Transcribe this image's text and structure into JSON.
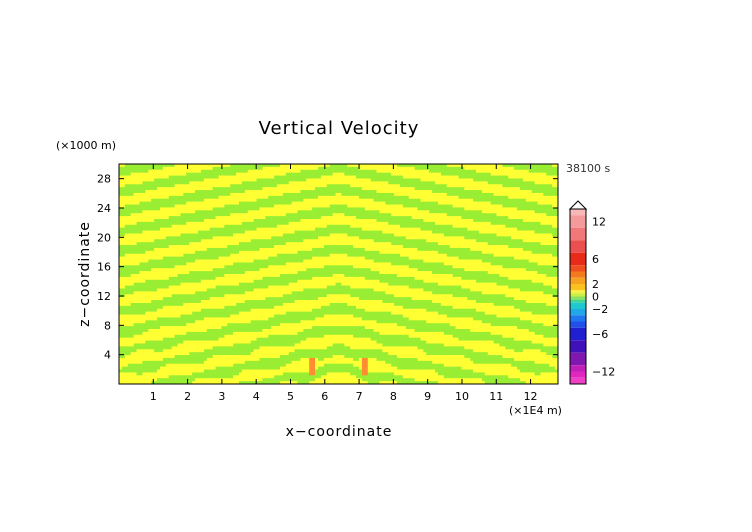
{
  "chart_data": {
    "type": "heatmap",
    "title": "Vertical Velocity",
    "xlabel": "x−coordinate",
    "ylabel": "z−coordinate",
    "x_unit": "(×1E4 m)",
    "y_unit": "(×1000 m)",
    "time_label": "38100 s",
    "xlim": [
      0,
      12.8
    ],
    "ylim": [
      0,
      30
    ],
    "x_ticks": [
      "1",
      "2",
      "3",
      "4",
      "5",
      "6",
      "7",
      "8",
      "9",
      "10",
      "11",
      "12"
    ],
    "y_ticks": [
      "4",
      "8",
      "12",
      "16",
      "20",
      "24",
      "28"
    ],
    "colorbar": {
      "range": [
        -14,
        14
      ],
      "tick_labels": [
        "12",
        "6",
        "2",
        "0",
        "−2",
        "−6",
        "−12"
      ],
      "tick_values": [
        12,
        6,
        2,
        0,
        -2,
        -6,
        -12
      ],
      "levels": [
        {
          "from": 13,
          "to": 14,
          "color": "#f8b8b8"
        },
        {
          "from": 11,
          "to": 13,
          "color": "#f49a9a"
        },
        {
          "from": 9,
          "to": 11,
          "color": "#f07878"
        },
        {
          "from": 7,
          "to": 9,
          "color": "#ea5050"
        },
        {
          "from": 5,
          "to": 7,
          "color": "#e82a1a"
        },
        {
          "from": 4,
          "to": 5,
          "color": "#f05020"
        },
        {
          "from": 3,
          "to": 4,
          "color": "#f47a20"
        },
        {
          "from": 2,
          "to": 3,
          "color": "#f8a020"
        },
        {
          "from": 1,
          "to": 2,
          "color": "#fcc020"
        },
        {
          "from": 0.5,
          "to": 1,
          "color": "#f6f040"
        },
        {
          "from": 0,
          "to": 0.5,
          "color": "#c8f048"
        },
        {
          "from": -0.5,
          "to": 0,
          "color": "#8ee060"
        },
        {
          "from": -1,
          "to": -0.5,
          "color": "#40d890"
        },
        {
          "from": -2,
          "to": -1,
          "color": "#20c8d0"
        },
        {
          "from": -3,
          "to": -2,
          "color": "#20a8e8"
        },
        {
          "from": -4,
          "to": -3,
          "color": "#2078f0"
        },
        {
          "from": -5,
          "to": -4,
          "color": "#2050e8"
        },
        {
          "from": -7,
          "to": -5,
          "color": "#2020d0"
        },
        {
          "from": -9,
          "to": -7,
          "color": "#4010b8"
        },
        {
          "from": -11,
          "to": -9,
          "color": "#8018b0"
        },
        {
          "from": -12,
          "to": -11,
          "color": "#c020b8"
        },
        {
          "from": -13,
          "to": -12,
          "color": "#e028c0"
        },
        {
          "from": -14,
          "to": -13,
          "color": "#f040c8"
        }
      ]
    },
    "field_colors": {
      "positive_small": "#ffff33",
      "negative_small": "#99ee33",
      "positive_peak": "#ff8c33"
    }
  }
}
